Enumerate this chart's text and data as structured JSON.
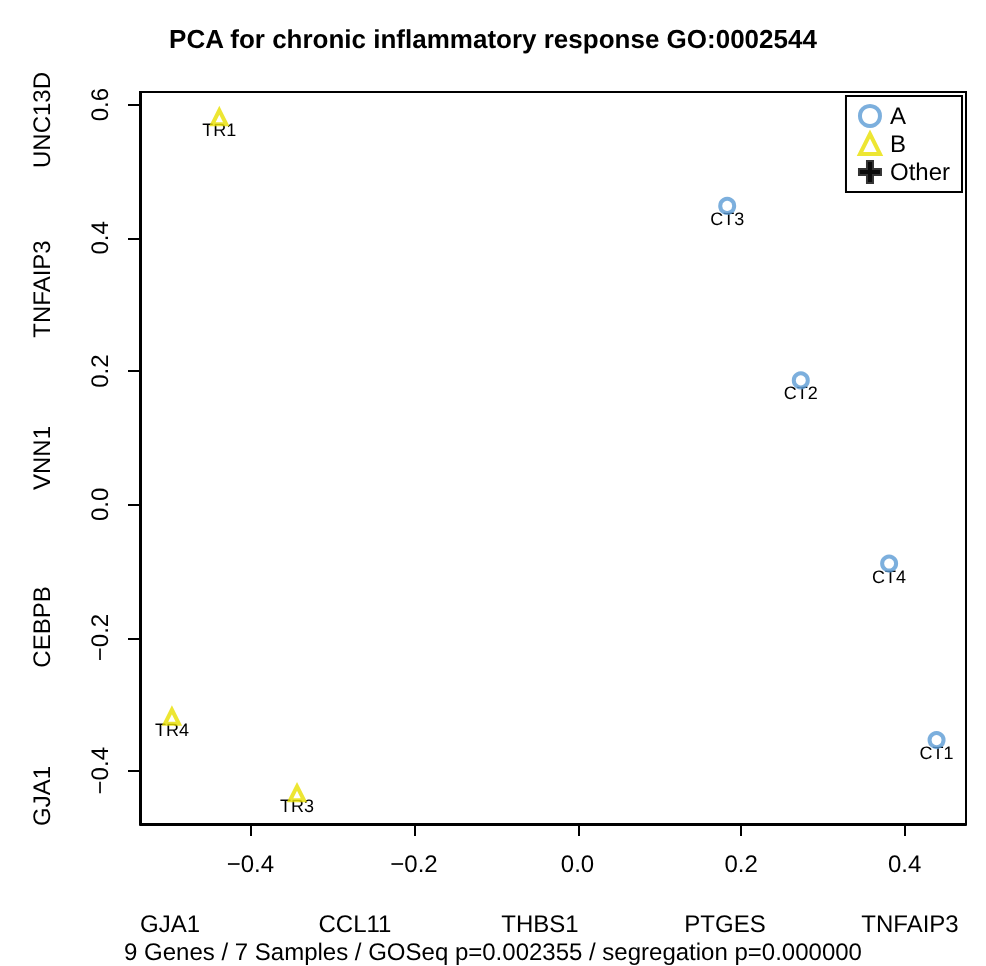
{
  "chart_data": {
    "type": "scatter",
    "title": "PCA for chronic inflammatory response GO:0002544",
    "xlabel": "9 Genes / 7 Samples / GOSeq p=0.002355 / segregation p=0.000000",
    "xlim": [
      -0.535,
      0.475
    ],
    "ylim": [
      -0.48,
      0.619
    ],
    "xticks": [
      {
        "value": -0.4,
        "label": "−0.4"
      },
      {
        "value": -0.2,
        "label": "−0.2"
      },
      {
        "value": 0,
        "label": "0.0"
      },
      0.2,
      0.4
    ],
    "yticks": [
      {
        "value": -0.4,
        "label": "−0.4"
      },
      {
        "value": -0.2,
        "label": "−0.2"
      },
      {
        "value": 0,
        "label": "0.0"
      },
      0.2,
      0.4,
      0.6
    ],
    "series": [
      {
        "name": "A",
        "color": "#5b9bd5",
        "marker": "circle",
        "x": [
          0.439,
          0.273,
          0.183,
          0.381
        ],
        "values": [
          -0.354,
          0.186,
          0.448,
          -0.089
        ]
      },
      {
        "name": "B",
        "color": "#e8e000",
        "marker": "triangle",
        "x": [
          -0.438,
          -0.343,
          -0.496
        ],
        "values": [
          0.581,
          -0.434,
          -0.319
        ]
      },
      {
        "name": "Other",
        "color": "#000000",
        "marker": "cross"
      }
    ],
    "annotations": [
      {
        "text": "CT1",
        "x": 0.439,
        "y": -0.354
      },
      {
        "text": "CT2",
        "x": 0.273,
        "y": 0.186
      },
      {
        "text": "CT3",
        "x": 0.183,
        "y": 0.448
      },
      {
        "text": "CT4",
        "x": 0.381,
        "y": -0.089
      },
      {
        "text": "TR1",
        "x": -0.438,
        "y": 0.581
      },
      {
        "text": "TR3",
        "x": -0.343,
        "y": -0.434
      },
      {
        "text": "TR4",
        "x": -0.496,
        "y": -0.319
      },
      "GJA1",
      "CCL11",
      "THBS1",
      "PTGES",
      "TNFAIP3",
      "UNC13D",
      "TNFAIP3",
      "VNN1",
      "CEBPB",
      "GJA1"
    ],
    "legend": "top right",
    "grid": false
  }
}
